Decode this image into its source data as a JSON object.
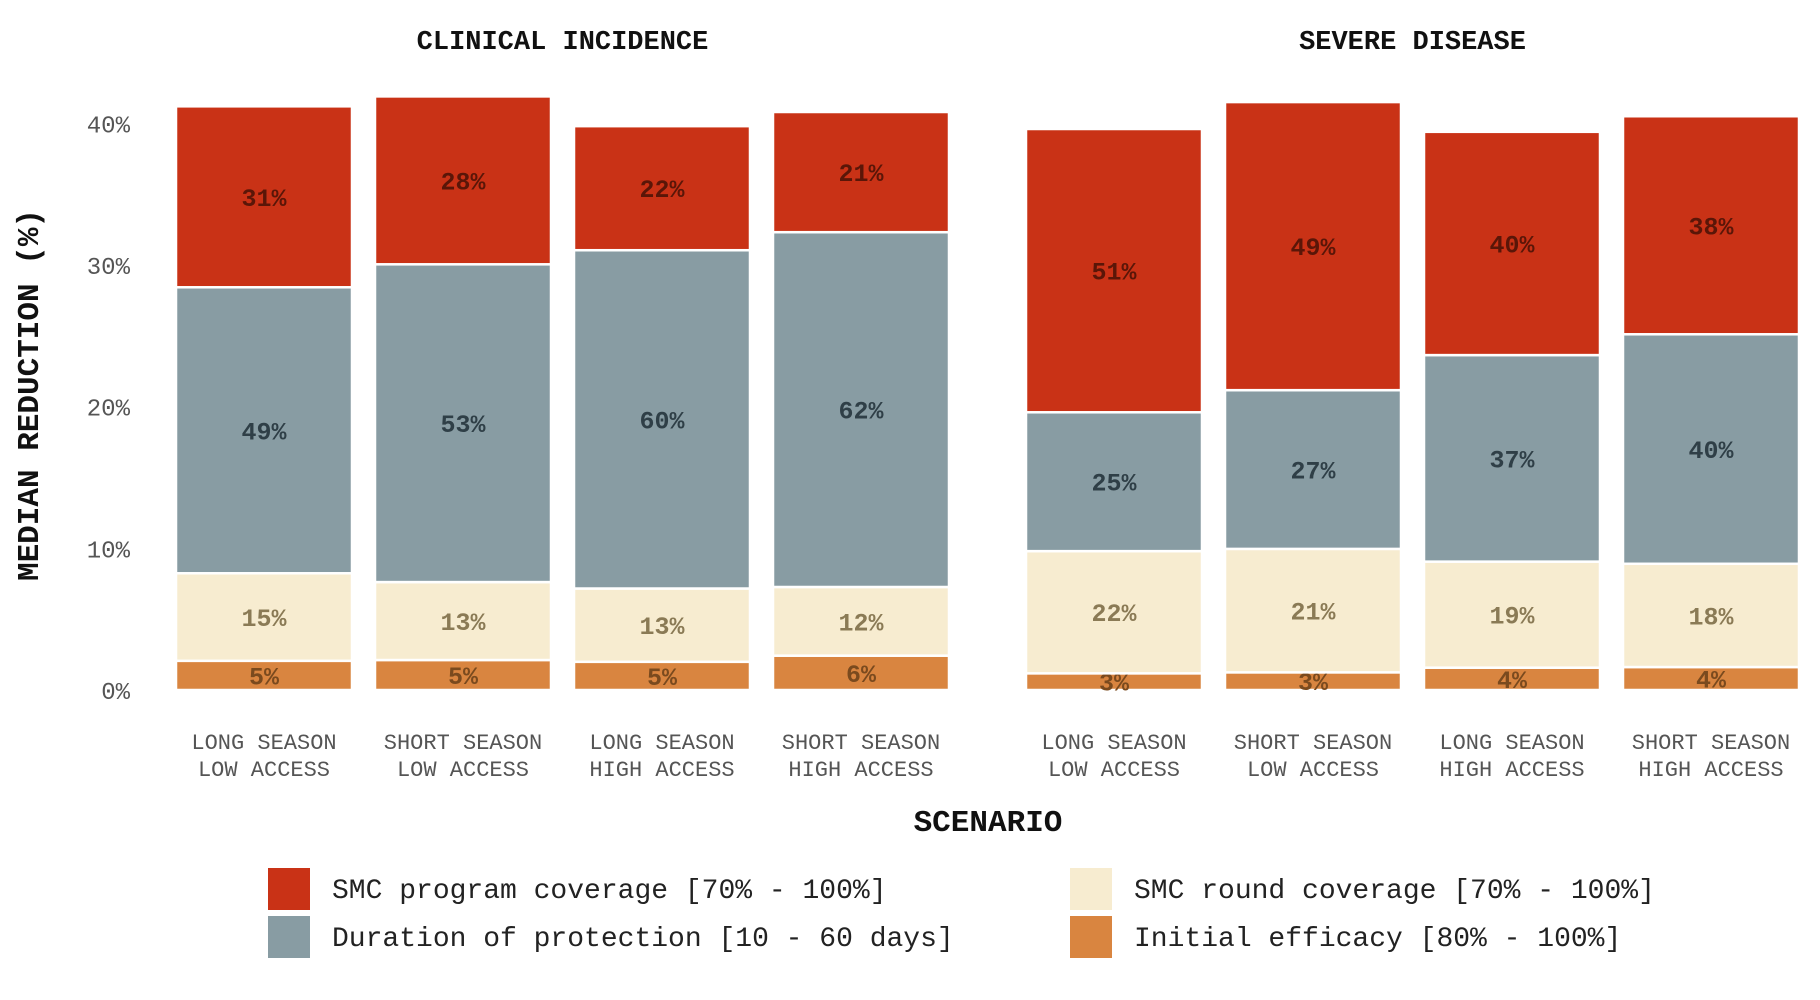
{
  "chart_data": {
    "type": "bar",
    "stacked": true,
    "xlabel": "SCENARIO",
    "ylabel": "MEDIAN REDUCTION (%)",
    "ylim": [
      0,
      42
    ],
    "yticks": [
      0,
      10,
      20,
      30,
      40
    ],
    "ytick_labels": [
      "0%",
      "10%",
      "20%",
      "30%",
      "40%"
    ],
    "grid": false,
    "legend_position": "bottom",
    "categories": [
      [
        "LONG SEASON",
        "LOW ACCESS"
      ],
      [
        "SHORT SEASON",
        "LOW ACCESS"
      ],
      [
        "LONG SEASON",
        "HIGH ACCESS"
      ],
      [
        "SHORT SEASON",
        "HIGH ACCESS"
      ]
    ],
    "series": [
      {
        "name": "Initial efficacy [80% - 100%]",
        "color": "#d98540",
        "label_color": "#7a4a1e"
      },
      {
        "name": "SMC round coverage [70% - 100%]",
        "color": "#f7ecd0",
        "label_color": "#8a7a55"
      },
      {
        "name": "Duration of protection [10 - 60 days]",
        "color": "#889ca3",
        "label_color": "#2f3f47"
      },
      {
        "name": "SMC program coverage [70% - 100%]",
        "color": "#c93216",
        "label_color": "#5a1608"
      }
    ],
    "legend_order": [
      3,
      1,
      2,
      0
    ],
    "panels": [
      {
        "title": "CLINICAL INCIDENCE",
        "totals": [
          41.2,
          41.9,
          39.8,
          40.8
        ],
        "shares": [
          [
            5,
            15,
            49,
            31
          ],
          [
            5,
            13,
            53,
            28
          ],
          [
            5,
            13,
            60,
            22
          ],
          [
            6,
            12,
            62,
            21
          ]
        ],
        "labels": [
          [
            "5%",
            "15%",
            "49%",
            "31%"
          ],
          [
            "5%",
            "13%",
            "53%",
            "28%"
          ],
          [
            "5%",
            "13%",
            "60%",
            "22%"
          ],
          [
            "6%",
            "12%",
            "62%",
            "21%"
          ]
        ]
      },
      {
        "title": "SEVERE DISEASE",
        "totals": [
          39.6,
          41.5,
          39.4,
          40.5
        ],
        "shares": [
          [
            3,
            22,
            25,
            51
          ],
          [
            3,
            21,
            27,
            49
          ],
          [
            4,
            19,
            37,
            40
          ],
          [
            4,
            18,
            40,
            38
          ]
        ],
        "labels": [
          [
            "3%",
            "22%",
            "25%",
            "51%"
          ],
          [
            "3%",
            "21%",
            "27%",
            "49%"
          ],
          [
            "4%",
            "19%",
            "37%",
            "40%"
          ],
          [
            "4%",
            "18%",
            "40%",
            "38%"
          ]
        ]
      }
    ]
  }
}
